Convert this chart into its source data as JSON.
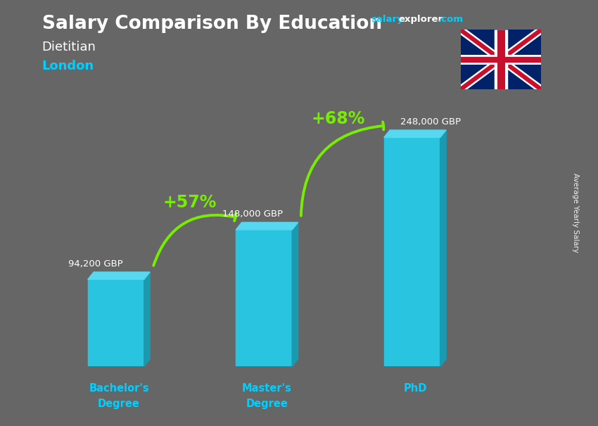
{
  "title": "Salary Comparison By Education",
  "subtitle_job": "Dietitian",
  "subtitle_location": "London",
  "categories": [
    "Bachelor's\nDegree",
    "Master's\nDegree",
    "PhD"
  ],
  "values": [
    94200,
    148000,
    248000
  ],
  "value_labels": [
    "94,200 GBP",
    "148,000 GBP",
    "248,000 GBP"
  ],
  "bar_color": "#29c4e0",
  "bar_color_dark": "#1a9ab0",
  "bar_color_bottom": "#0d7a8a",
  "background_color": "#666666",
  "text_color_white": "#ffffff",
  "text_color_cyan": "#00cfff",
  "text_color_green": "#77ee00",
  "pct_labels": [
    "+57%",
    "+68%"
  ],
  "site_text1": "salary",
  "site_text2": "explorer",
  "site_text3": ".com",
  "ylabel": "Average Yearly Salary",
  "ylim": [
    0,
    300000
  ],
  "bar_width": 0.38,
  "x_positions": [
    0,
    1,
    2
  ]
}
